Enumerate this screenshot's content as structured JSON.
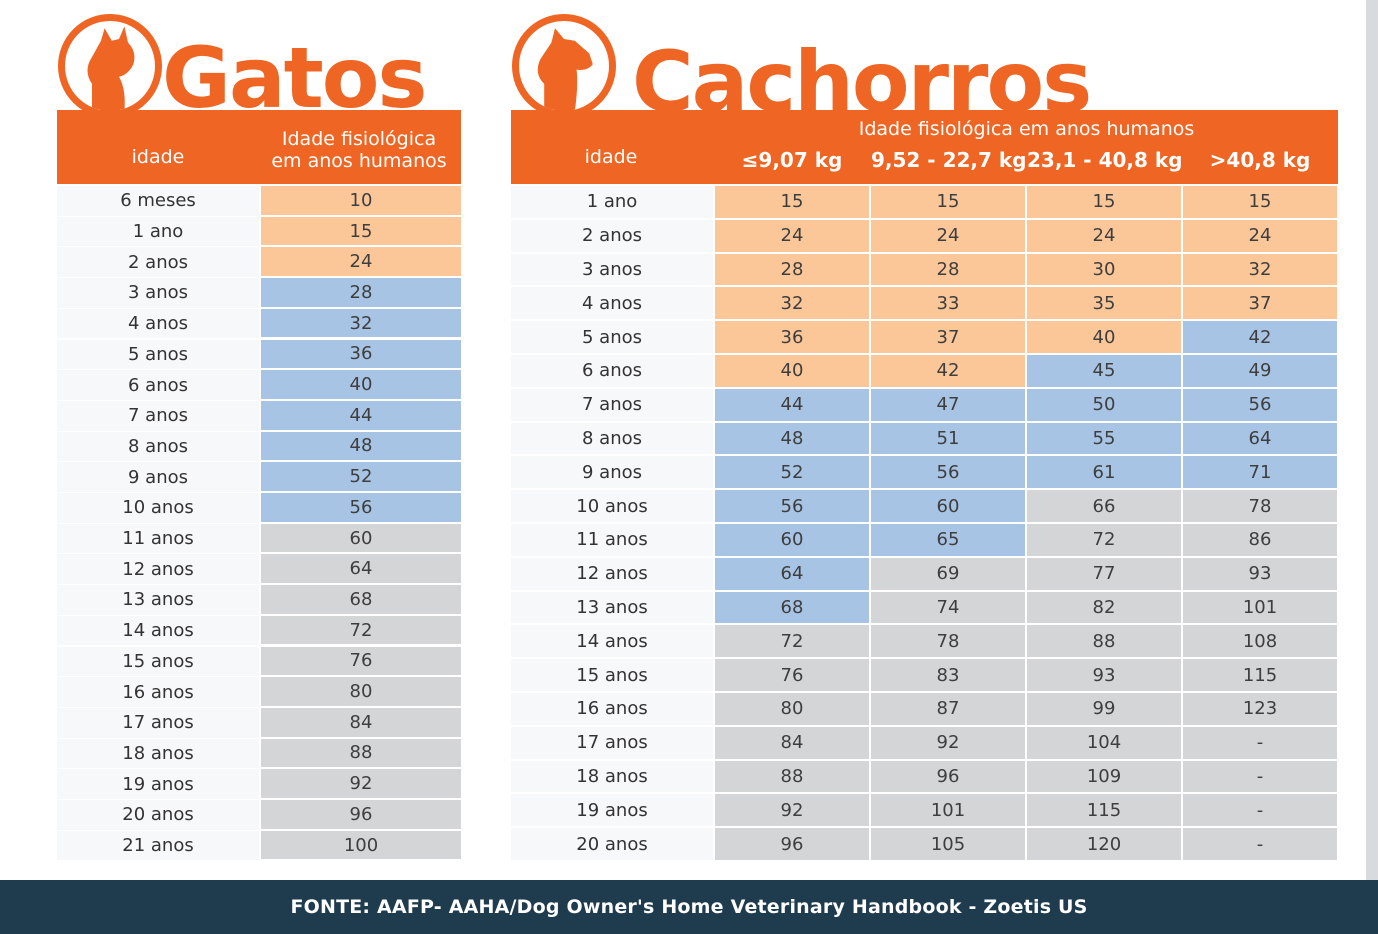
{
  "cats": {
    "title": "Gatos",
    "header": {
      "age": "idade",
      "physio": "Idade fisiológica",
      "physio2": "em anos humanos"
    },
    "rows": [
      {
        "age": "6 meses",
        "v": "10",
        "c": "o"
      },
      {
        "age": "1 ano",
        "v": "15",
        "c": "o"
      },
      {
        "age": "2 anos",
        "v": "24",
        "c": "o"
      },
      {
        "age": "3 anos",
        "v": "28",
        "c": "bl"
      },
      {
        "age": "4 anos",
        "v": "32",
        "c": "bl"
      },
      {
        "age": "5 anos",
        "v": "36",
        "c": "bl"
      },
      {
        "age": "6 anos",
        "v": "40",
        "c": "bl"
      },
      {
        "age": "7 anos",
        "v": "44",
        "c": "bl"
      },
      {
        "age": "8 anos",
        "v": "48",
        "c": "bl"
      },
      {
        "age": "9 anos",
        "v": "52",
        "c": "bl"
      },
      {
        "age": "10 anos",
        "v": "56",
        "c": "bl"
      },
      {
        "age": "11 anos",
        "v": "60",
        "c": "g"
      },
      {
        "age": "12 anos",
        "v": "64",
        "c": "g"
      },
      {
        "age": "13 anos",
        "v": "68",
        "c": "g"
      },
      {
        "age": "14 anos",
        "v": "72",
        "c": "g"
      },
      {
        "age": "15 anos",
        "v": "76",
        "c": "g"
      },
      {
        "age": "16 anos",
        "v": "80",
        "c": "g"
      },
      {
        "age": "17 anos",
        "v": "84",
        "c": "g"
      },
      {
        "age": "18 anos",
        "v": "88",
        "c": "g"
      },
      {
        "age": "19 anos",
        "v": "92",
        "c": "g"
      },
      {
        "age": "20 anos",
        "v": "96",
        "c": "g"
      },
      {
        "age": "21 anos",
        "v": "100",
        "c": "g"
      }
    ]
  },
  "dogs": {
    "title": "Cachorros",
    "header": {
      "age": "idade",
      "physio": "Idade fisiológica  em anos humanos",
      "weights": [
        "≤9,07 kg",
        "9,52 - 22,7 kg",
        "23,1 - 40,8 kg",
        ">40,8 kg"
      ]
    },
    "rows": [
      {
        "age": "1 ano",
        "v": [
          "15",
          "15",
          "15",
          "15"
        ],
        "c": [
          "o",
          "o",
          "o",
          "o"
        ]
      },
      {
        "age": "2 anos",
        "v": [
          "24",
          "24",
          "24",
          "24"
        ],
        "c": [
          "o",
          "o",
          "o",
          "o"
        ]
      },
      {
        "age": "3 anos",
        "v": [
          "28",
          "28",
          "30",
          "32"
        ],
        "c": [
          "o",
          "o",
          "o",
          "o"
        ]
      },
      {
        "age": "4 anos",
        "v": [
          "32",
          "33",
          "35",
          "37"
        ],
        "c": [
          "o",
          "o",
          "o",
          "o"
        ]
      },
      {
        "age": "5 anos",
        "v": [
          "36",
          "37",
          "40",
          "42"
        ],
        "c": [
          "o",
          "o",
          "o",
          "bl"
        ]
      },
      {
        "age": "6 anos",
        "v": [
          "40",
          "42",
          "45",
          "49"
        ],
        "c": [
          "o",
          "o",
          "bl",
          "bl"
        ]
      },
      {
        "age": "7 anos",
        "v": [
          "44",
          "47",
          "50",
          "56"
        ],
        "c": [
          "bl",
          "bl",
          "bl",
          "bl"
        ]
      },
      {
        "age": "8 anos",
        "v": [
          "48",
          "51",
          "55",
          "64"
        ],
        "c": [
          "bl",
          "bl",
          "bl",
          "bl"
        ]
      },
      {
        "age": "9 anos",
        "v": [
          "52",
          "56",
          "61",
          "71"
        ],
        "c": [
          "bl",
          "bl",
          "bl",
          "bl"
        ]
      },
      {
        "age": "10 anos",
        "v": [
          "56",
          "60",
          "66",
          "78"
        ],
        "c": [
          "bl",
          "bl",
          "g",
          "g"
        ]
      },
      {
        "age": "11 anos",
        "v": [
          "60",
          "65",
          "72",
          "86"
        ],
        "c": [
          "bl",
          "bl",
          "g",
          "g"
        ]
      },
      {
        "age": "12 anos",
        "v": [
          "64",
          "69",
          "77",
          "93"
        ],
        "c": [
          "bl",
          "g",
          "g",
          "g"
        ]
      },
      {
        "age": "13 anos",
        "v": [
          "68",
          "74",
          "82",
          "101"
        ],
        "c": [
          "bl",
          "g",
          "g",
          "g"
        ]
      },
      {
        "age": "14 anos",
        "v": [
          "72",
          "78",
          "88",
          "108"
        ],
        "c": [
          "g",
          "g",
          "g",
          "g"
        ]
      },
      {
        "age": "15 anos",
        "v": [
          "76",
          "83",
          "93",
          "115"
        ],
        "c": [
          "g",
          "g",
          "g",
          "g"
        ]
      },
      {
        "age": "16 anos",
        "v": [
          "80",
          "87",
          "99",
          "123"
        ],
        "c": [
          "g",
          "g",
          "g",
          "g"
        ]
      },
      {
        "age": "17 anos",
        "v": [
          "84",
          "92",
          "104",
          "-"
        ],
        "c": [
          "g",
          "g",
          "g",
          "g"
        ]
      },
      {
        "age": "18 anos",
        "v": [
          "88",
          "96",
          "109",
          "-"
        ],
        "c": [
          "g",
          "g",
          "g",
          "g"
        ]
      },
      {
        "age": "19 anos",
        "v": [
          "92",
          "101",
          "115",
          "-"
        ],
        "c": [
          "g",
          "g",
          "g",
          "g"
        ]
      },
      {
        "age": "20 anos",
        "v": [
          "96",
          "105",
          "120",
          "-"
        ],
        "c": [
          "g",
          "g",
          "g",
          "g"
        ]
      }
    ]
  },
  "footer": "FONTE: AAFP- AAHA/Dog Owner's Home Veterinary Handbook - Zoetis US",
  "colors": {
    "orange": "#ef6523",
    "young": "#fbc799",
    "adult": "#a8c4e4",
    "senior": "#d3d5d7",
    "footer_bg": "#1f3b4e"
  },
  "icons": [
    "cat-logo-icon",
    "dog-logo-icon"
  ]
}
